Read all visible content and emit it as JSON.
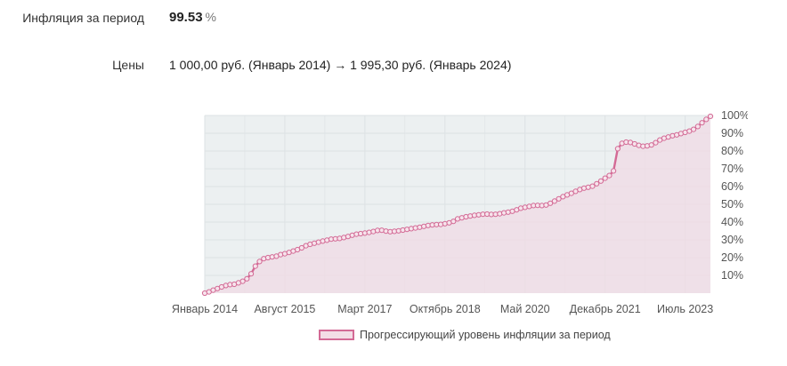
{
  "inflation": {
    "label": "Инфляция за период",
    "value": "99.53",
    "unit": "%"
  },
  "prices": {
    "label": "Цены",
    "text": "1 000,00 руб. (Январь 2014) → 1 995,30 руб. (Январь 2024)"
  },
  "colors": {
    "line": "#d36a95",
    "fill": "#f0dbe4",
    "plot_bg": "#ecf0f1",
    "grid": "#dde2e4"
  },
  "chart_data": {
    "type": "area",
    "legend_position": "bottom",
    "grid": true,
    "x_tick_labels": [
      "Январь 2014",
      "Август 2015",
      "Март 2017",
      "Октябрь 2018",
      "Май 2020",
      "Декабрь 2021",
      "Июль 2023"
    ],
    "y_tick_labels": [
      "10%",
      "20%",
      "30%",
      "40%",
      "50%",
      "60%",
      "70%",
      "80%",
      "90%",
      "100%"
    ],
    "ylim": [
      0,
      100
    ],
    "xlim": [
      "2014-01",
      "2024-01"
    ],
    "series": [
      {
        "name": "Прогрессирующий уровень инфляции за период",
        "points": [
          [
            "2014-01",
            0
          ],
          [
            "2014-02",
            0.7
          ],
          [
            "2014-03",
            1.7
          ],
          [
            "2014-04",
            2.6
          ],
          [
            "2014-05",
            3.5
          ],
          [
            "2014-06",
            4.3
          ],
          [
            "2014-07",
            4.8
          ],
          [
            "2014-08",
            5.0
          ],
          [
            "2014-09",
            5.8
          ],
          [
            "2014-10",
            6.7
          ],
          [
            "2014-11",
            8.1
          ],
          [
            "2014-12",
            10.9
          ],
          [
            "2015-01",
            15.2
          ],
          [
            "2015-02",
            17.8
          ],
          [
            "2015-03",
            19.4
          ],
          [
            "2015-04",
            20.0
          ],
          [
            "2015-05",
            20.4
          ],
          [
            "2015-06",
            20.8
          ],
          [
            "2015-07",
            21.7
          ],
          [
            "2015-08",
            22.2
          ],
          [
            "2015-09",
            22.9
          ],
          [
            "2015-10",
            23.7
          ],
          [
            "2015-11",
            24.5
          ],
          [
            "2015-12",
            25.5
          ],
          [
            "2016-01",
            26.7
          ],
          [
            "2016-02",
            27.5
          ],
          [
            "2016-03",
            28.1
          ],
          [
            "2016-04",
            28.7
          ],
          [
            "2016-05",
            29.3
          ],
          [
            "2016-06",
            29.8
          ],
          [
            "2016-07",
            30.4
          ],
          [
            "2016-08",
            30.6
          ],
          [
            "2016-09",
            30.8
          ],
          [
            "2016-10",
            31.3
          ],
          [
            "2016-11",
            31.9
          ],
          [
            "2016-12",
            32.6
          ],
          [
            "2017-01",
            33.2
          ],
          [
            "2017-02",
            33.5
          ],
          [
            "2017-03",
            33.8
          ],
          [
            "2017-04",
            34.2
          ],
          [
            "2017-05",
            34.7
          ],
          [
            "2017-06",
            35.3
          ],
          [
            "2017-07",
            35.4
          ],
          [
            "2017-08",
            34.9
          ],
          [
            "2017-09",
            34.6
          ],
          [
            "2017-10",
            34.8
          ],
          [
            "2017-11",
            35.1
          ],
          [
            "2017-12",
            35.5
          ],
          [
            "2018-01",
            35.9
          ],
          [
            "2018-02",
            36.3
          ],
          [
            "2018-03",
            36.7
          ],
          [
            "2018-04",
            37.1
          ],
          [
            "2018-05",
            37.6
          ],
          [
            "2018-06",
            38.1
          ],
          [
            "2018-07",
            38.4
          ],
          [
            "2018-08",
            38.6
          ],
          [
            "2018-09",
            38.7
          ],
          [
            "2018-10",
            39.1
          ],
          [
            "2018-11",
            39.6
          ],
          [
            "2018-12",
            40.4
          ],
          [
            "2019-01",
            41.8
          ],
          [
            "2019-02",
            42.4
          ],
          [
            "2019-03",
            43.0
          ],
          [
            "2019-04",
            43.4
          ],
          [
            "2019-05",
            43.8
          ],
          [
            "2019-06",
            44.1
          ],
          [
            "2019-07",
            44.4
          ],
          [
            "2019-08",
            44.5
          ],
          [
            "2019-09",
            44.3
          ],
          [
            "2019-10",
            44.4
          ],
          [
            "2019-11",
            44.7
          ],
          [
            "2019-12",
            45.2
          ],
          [
            "2020-01",
            45.6
          ],
          [
            "2020-02",
            46.1
          ],
          [
            "2020-03",
            46.9
          ],
          [
            "2020-04",
            47.8
          ],
          [
            "2020-05",
            48.3
          ],
          [
            "2020-06",
            48.8
          ],
          [
            "2020-07",
            49.3
          ],
          [
            "2020-08",
            49.4
          ],
          [
            "2020-09",
            49.3
          ],
          [
            "2020-10",
            49.6
          ],
          [
            "2020-11",
            50.6
          ],
          [
            "2020-12",
            51.8
          ],
          [
            "2021-01",
            53.1
          ],
          [
            "2021-02",
            54.3
          ],
          [
            "2021-03",
            55.3
          ],
          [
            "2021-04",
            56.2
          ],
          [
            "2021-05",
            57.3
          ],
          [
            "2021-06",
            58.3
          ],
          [
            "2021-07",
            59.1
          ],
          [
            "2021-08",
            59.6
          ],
          [
            "2021-09",
            60.2
          ],
          [
            "2021-10",
            61.6
          ],
          [
            "2021-11",
            63.1
          ],
          [
            "2021-12",
            64.7
          ],
          [
            "2022-01",
            66.2
          ],
          [
            "2022-02",
            68.8
          ],
          [
            "2022-03",
            81.3
          ],
          [
            "2022-04",
            84.3
          ],
          [
            "2022-05",
            85.0
          ],
          [
            "2022-06",
            84.8
          ],
          [
            "2022-07",
            84.0
          ],
          [
            "2022-08",
            83.2
          ],
          [
            "2022-09",
            82.7
          ],
          [
            "2022-10",
            82.9
          ],
          [
            "2022-11",
            83.4
          ],
          [
            "2022-12",
            84.7
          ],
          [
            "2023-01",
            86.2
          ],
          [
            "2023-02",
            87.2
          ],
          [
            "2023-03",
            87.9
          ],
          [
            "2023-04",
            88.6
          ],
          [
            "2023-05",
            89.1
          ],
          [
            "2023-06",
            89.8
          ],
          [
            "2023-07",
            90.5
          ],
          [
            "2023-08",
            91.2
          ],
          [
            "2023-09",
            92.2
          ],
          [
            "2023-10",
            93.8
          ],
          [
            "2023-11",
            95.9
          ],
          [
            "2023-12",
            97.8
          ],
          [
            "2024-01",
            99.53
          ]
        ]
      }
    ]
  }
}
